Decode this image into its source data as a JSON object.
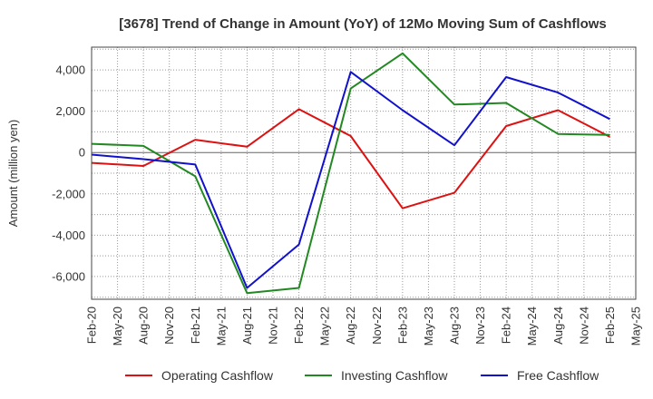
{
  "chart_data": {
    "type": "line",
    "title": "[3678]  Trend of Change in Amount (YoY) of 12Mo Moving Sum of Cashflows",
    "xlabel": "",
    "ylabel": "Amount (million yen)",
    "ylim": [
      -7100,
      5100
    ],
    "yticks": [
      4000,
      2000,
      0,
      -2000,
      -4000,
      -6000
    ],
    "ytick_labels": [
      "4,000",
      "2,000",
      "0",
      "-2,000",
      "-4,000",
      "-6,000"
    ],
    "categories": [
      "Feb-20",
      "May-20",
      "Aug-20",
      "Nov-20",
      "Feb-21",
      "May-21",
      "Aug-21",
      "Nov-21",
      "Feb-22",
      "May-22",
      "Aug-22",
      "Nov-22",
      "Feb-23",
      "May-23",
      "Aug-23",
      "Nov-23",
      "Feb-24",
      "May-24",
      "Aug-24",
      "Nov-24",
      "Feb-25",
      "May-25"
    ],
    "grid": true,
    "legend_position": "bottom",
    "series": [
      {
        "name": "Operating Cashflow",
        "color": "#dd1111",
        "points": [
          [
            0,
            -500
          ],
          [
            2,
            -650
          ],
          [
            4,
            620
          ],
          [
            6,
            280
          ],
          [
            8,
            2100
          ],
          [
            10,
            800
          ],
          [
            12,
            -2700
          ],
          [
            14,
            -1950
          ],
          [
            16,
            1280
          ],
          [
            18,
            2050
          ],
          [
            20,
            760
          ]
        ]
      },
      {
        "name": "Investing Cashflow",
        "color": "#228822",
        "points": [
          [
            0,
            420
          ],
          [
            2,
            320
          ],
          [
            4,
            -1150
          ],
          [
            6,
            -6800
          ],
          [
            8,
            -6550
          ],
          [
            10,
            3100
          ],
          [
            12,
            4800
          ],
          [
            14,
            2320
          ],
          [
            16,
            2400
          ],
          [
            18,
            900
          ],
          [
            20,
            850
          ]
        ]
      },
      {
        "name": "Free Cashflow",
        "color": "#1111cc",
        "points": [
          [
            0,
            -100
          ],
          [
            2,
            -320
          ],
          [
            4,
            -580
          ],
          [
            6,
            -6550
          ],
          [
            8,
            -4450
          ],
          [
            10,
            3900
          ],
          [
            12,
            2050
          ],
          [
            14,
            350
          ],
          [
            16,
            3650
          ],
          [
            18,
            2900
          ],
          [
            20,
            1620
          ]
        ]
      }
    ]
  }
}
